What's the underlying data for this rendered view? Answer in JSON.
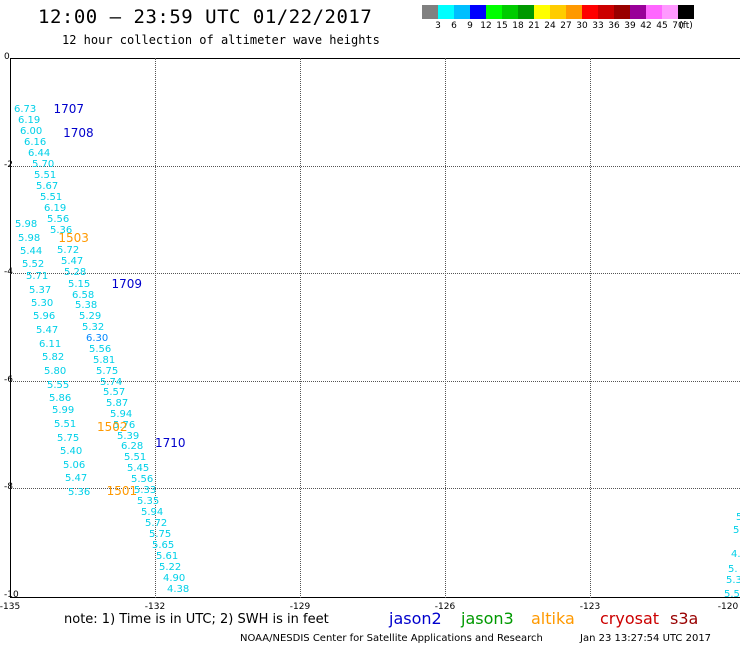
{
  "header": {
    "title": "12:00 – 23:59 UTC 01/22/2017",
    "subtitle": "12 hour collection of altimeter wave heights"
  },
  "colorbar": {
    "colors": [
      "#808080",
      "#00ffff",
      "#00bfff",
      "#0000ff",
      "#00ff00",
      "#00cc00",
      "#009900",
      "#ffff00",
      "#ffcc00",
      "#ff9900",
      "#ff0000",
      "#cc0000",
      "#990000",
      "#990099",
      "#ff66ff",
      "#ff99ff",
      "#000000"
    ],
    "labels": [
      "3",
      "6",
      "9",
      "12",
      "15",
      "18",
      "21",
      "24",
      "27",
      "30",
      "33",
      "36",
      "39",
      "42",
      "45",
      "70",
      "(ft)"
    ]
  },
  "axes": {
    "y_ticks": [
      "0",
      "-2",
      "-4",
      "-6",
      "-8",
      "-10"
    ],
    "x_ticks": [
      "-135",
      "-132",
      "-129",
      "-126",
      "-123",
      "-120"
    ]
  },
  "passes": [
    {
      "label": "1707",
      "color": "#0000cc",
      "lon": -134.1,
      "lat": -0.95
    },
    {
      "label": "1708",
      "color": "#0000cc",
      "lon": -133.9,
      "lat": -1.4
    },
    {
      "label": "1503",
      "color": "#ff9900",
      "lon": -134.0,
      "lat": -3.35
    },
    {
      "label": "1709",
      "color": "#0000cc",
      "lon": -132.9,
      "lat": -4.2
    },
    {
      "label": "1502",
      "color": "#ff9900",
      "lon": -133.2,
      "lat": -6.85
    },
    {
      "label": "1710",
      "color": "#0000cc",
      "lon": -132.0,
      "lat": -7.15
    },
    {
      "label": "1501",
      "color": "#ff9900",
      "lon": -133.0,
      "lat": -8.05
    }
  ],
  "points_left": [
    "6.73",
    "6.19",
    "6.00",
    "6.16",
    "6.44",
    "5.70",
    "5.51",
    "5.67",
    "5.51",
    "6.19",
    "5.56",
    "5.36",
    "5.98",
    "5.98",
    "5.44",
    "5.72",
    "5.52",
    "5.47",
    "5.71",
    "5.28",
    "5.37",
    "5.15",
    "5.30",
    "6.58",
    "5.96",
    "5.38",
    "5.47",
    "5.29",
    "6.11",
    "5.32",
    "5.82",
    "6.30",
    "5.80",
    "5.56",
    "5.55",
    "5.81",
    "5.86",
    "5.75",
    "5.99",
    "5.74",
    "5.51",
    "5.57",
    "5.75",
    "5.87",
    "5.40",
    "5.94",
    "5.06",
    "5.76",
    "5.47",
    "5.39",
    "5.36",
    "6.28",
    "5.51",
    "5.45",
    "5.56",
    "5.33",
    "5.35",
    "5.94",
    "5.72",
    "5.75",
    "5.65",
    "5.61",
    "5.22",
    "4.90",
    "4.38"
  ],
  "points_right": [
    "5.",
    "5.",
    "4.",
    "5.",
    "5.3",
    "5.5"
  ],
  "footer": {
    "note": "note: 1) Time is in UTC; 2) SWH is in feet",
    "legend": [
      {
        "name": "jason2",
        "color": "#0000cc"
      },
      {
        "name": "jason3",
        "color": "#009900"
      },
      {
        "name": "altika",
        "color": "#ff9900"
      },
      {
        "name": "cryosat",
        "color": "#cc0000"
      },
      {
        "name": "s3a",
        "color": "#990000"
      }
    ],
    "credit": "NOAA/NESDIS Center for Satellite Applications and Research",
    "timestamp": "Jan 23 13:27:54 UTC 2017"
  }
}
